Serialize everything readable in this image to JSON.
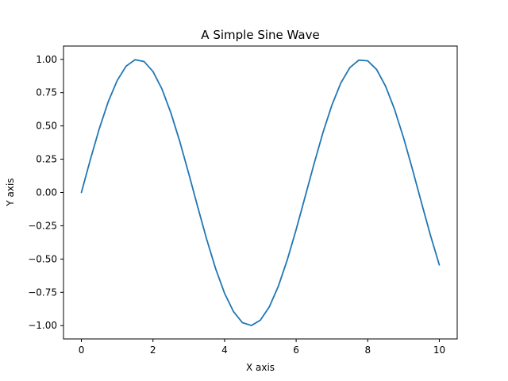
{
  "chart_data": {
    "type": "line",
    "title": "A Simple Sine Wave",
    "xlabel": "X axis",
    "ylabel": "Y axis",
    "xlim": [
      -0.5,
      10.5
    ],
    "ylim": [
      -1.1,
      1.1
    ],
    "xticks": [
      0,
      2,
      4,
      6,
      8,
      10
    ],
    "xtick_labels": [
      "0",
      "2",
      "4",
      "6",
      "8",
      "10"
    ],
    "yticks": [
      -1.0,
      -0.75,
      -0.5,
      -0.25,
      0.0,
      0.25,
      0.5,
      0.75,
      1.0
    ],
    "ytick_labels": [
      "−1.00",
      "−0.75",
      "−0.50",
      "−0.25",
      "0.00",
      "0.25",
      "0.50",
      "0.75",
      "1.00"
    ],
    "grid": false,
    "series": [
      {
        "color": "#1f77b4",
        "x": [
          0,
          0.25,
          0.5,
          0.75,
          1.0,
          1.25,
          1.5,
          1.75,
          2.0,
          2.25,
          2.5,
          2.75,
          3.0,
          3.25,
          3.5,
          3.75,
          4.0,
          4.25,
          4.5,
          4.75,
          5.0,
          5.25,
          5.5,
          5.75,
          6.0,
          6.25,
          6.5,
          6.75,
          7.0,
          7.25,
          7.5,
          7.75,
          8.0,
          8.25,
          8.5,
          8.75,
          9.0,
          9.25,
          9.5,
          9.75,
          10.0
        ],
        "y": [
          0.0,
          0.247,
          0.479,
          0.682,
          0.841,
          0.949,
          0.997,
          0.984,
          0.909,
          0.778,
          0.598,
          0.382,
          0.141,
          -0.108,
          -0.351,
          -0.572,
          -0.757,
          -0.895,
          -0.978,
          -0.999,
          -0.959,
          -0.859,
          -0.706,
          -0.508,
          -0.279,
          -0.033,
          0.215,
          0.451,
          0.657,
          0.823,
          0.938,
          0.994,
          0.989,
          0.923,
          0.798,
          0.624,
          0.412,
          0.174,
          -0.075,
          -0.319,
          -0.544
        ]
      }
    ]
  }
}
